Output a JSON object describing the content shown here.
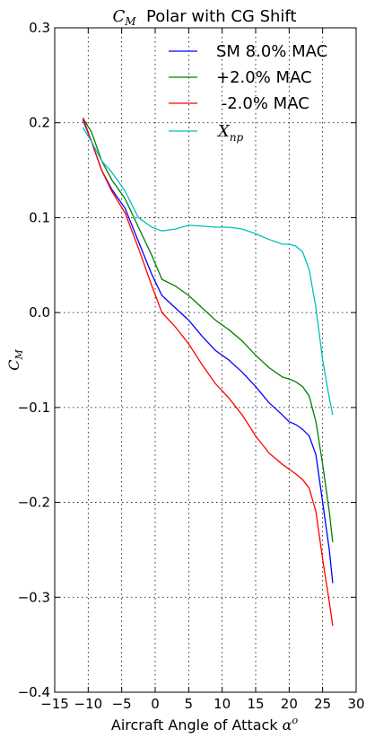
{
  "chart_data": {
    "type": "line",
    "title": {
      "math_symbol": "C",
      "math_subscript": "M",
      "text": "  Polar with CG Shift"
    },
    "xlabel": {
      "text": "Aircraft Angle of Attack ",
      "math_symbol": "α",
      "math_superscript": "o"
    },
    "ylabel": {
      "math_symbol": "C",
      "math_subscript": "M"
    },
    "xlim": [
      -15,
      30
    ],
    "ylim": [
      -0.4,
      0.3
    ],
    "x_ticks": [
      -15,
      -10,
      -5,
      0,
      5,
      10,
      15,
      20,
      25,
      30
    ],
    "x_tick_labels": [
      "−15",
      "−10",
      "−5",
      "0",
      "5",
      "10",
      "15",
      "20",
      "25",
      "30"
    ],
    "y_ticks": [
      -0.4,
      -0.3,
      -0.2,
      -0.1,
      0.0,
      0.1,
      0.2,
      0.3
    ],
    "y_tick_labels": [
      "−0.4",
      "−0.3",
      "−0.2",
      "−0.1",
      "0.0",
      "0.1",
      "0.2",
      "0.3"
    ],
    "grid": true,
    "legend_position": "top-right",
    "series": [
      {
        "name": "SM 8.0% MAC",
        "color": "#0000ff",
        "x": [
          -10.8,
          -9.5,
          -8,
          -6.5,
          -4.5,
          -2.5,
          -0.5,
          1,
          3,
          5,
          7,
          9,
          11,
          13,
          15,
          17,
          19,
          20,
          21,
          22,
          23,
          24,
          25,
          26,
          26.5
        ],
        "y": [
          0.203,
          0.18,
          0.15,
          0.13,
          0.11,
          0.075,
          0.04,
          0.018,
          0.005,
          -0.008,
          -0.025,
          -0.04,
          -0.05,
          -0.063,
          -0.078,
          -0.095,
          -0.108,
          -0.115,
          -0.118,
          -0.123,
          -0.13,
          -0.15,
          -0.2,
          -0.25,
          -0.285
        ]
      },
      {
        "name": "+2.0% MAC",
        "color": "#008000",
        "x": [
          -10.8,
          -9.5,
          -8,
          -6.5,
          -4.5,
          -2.5,
          -0.5,
          1,
          3,
          5,
          7,
          9,
          11,
          13,
          15,
          17,
          19,
          20,
          21,
          22,
          23,
          24,
          25,
          26,
          26.5
        ],
        "y": [
          0.205,
          0.19,
          0.16,
          0.14,
          0.12,
          0.09,
          0.06,
          0.035,
          0.028,
          0.018,
          0.005,
          -0.008,
          -0.018,
          -0.03,
          -0.045,
          -0.058,
          -0.068,
          -0.07,
          -0.073,
          -0.078,
          -0.088,
          -0.115,
          -0.16,
          -0.21,
          -0.242
        ]
      },
      {
        "name": " -2.0% MAC",
        "color": "#ff0000",
        "x": [
          -10.8,
          -9.5,
          -8,
          -6.5,
          -4.5,
          -2.5,
          -0.5,
          1,
          3,
          5,
          7,
          9,
          11,
          13,
          15,
          17,
          19,
          20,
          21,
          22,
          23,
          24,
          25,
          26,
          26.5
        ],
        "y": [
          0.205,
          0.18,
          0.15,
          0.128,
          0.105,
          0.068,
          0.028,
          0,
          -0.015,
          -0.033,
          -0.055,
          -0.075,
          -0.09,
          -0.108,
          -0.13,
          -0.148,
          -0.16,
          -0.165,
          -0.17,
          -0.176,
          -0.185,
          -0.21,
          -0.26,
          -0.305,
          -0.33
        ]
      },
      {
        "name_symbol": "X",
        "name_subscript": "np",
        "color": "#00bfbf",
        "x": [
          -10.8,
          -9.5,
          -8,
          -6.5,
          -4.5,
          -2.5,
          -0.5,
          1,
          3,
          5,
          7,
          9,
          11,
          13,
          15,
          17,
          19,
          20,
          21,
          22,
          23,
          24,
          25,
          26,
          26.5
        ],
        "y": [
          0.195,
          0.18,
          0.16,
          0.148,
          0.128,
          0.1,
          0.09,
          0.086,
          0.088,
          0.092,
          0.091,
          0.09,
          0.09,
          0.088,
          0.083,
          0.077,
          0.072,
          0.072,
          0.07,
          0.064,
          0.045,
          0.005,
          -0.05,
          -0.09,
          -0.108
        ]
      }
    ]
  }
}
